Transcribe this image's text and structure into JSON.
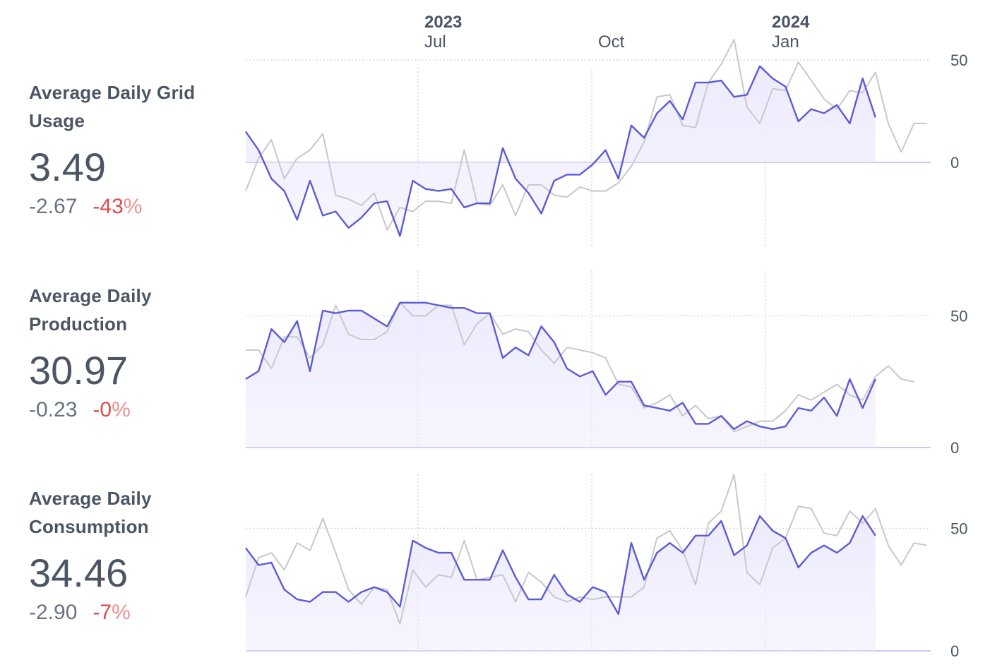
{
  "header": {
    "years": [
      {
        "label": "2023",
        "tick": "2023-07"
      },
      {
        "label": "2024",
        "tick": "2024-01"
      }
    ],
    "months": [
      {
        "label": "Jul",
        "tick": "2023-07"
      },
      {
        "label": "Oct",
        "tick": "2023-10"
      },
      {
        "label": "Jan",
        "tick": "2024-01"
      }
    ]
  },
  "stats": [
    {
      "title_line1": "Average Daily Grid",
      "title_line2": "Usage",
      "value": "3.49",
      "delta": "-2.67",
      "pct_num": "-43",
      "pct_sign": "%"
    },
    {
      "title_line1": "Average Daily",
      "title_line2": "Production",
      "value": "30.97",
      "delta": "-0.23",
      "pct_num": "-0",
      "pct_sign": "%"
    },
    {
      "title_line1": "Average Daily",
      "title_line2": "Consumption",
      "value": "34.46",
      "delta": "-2.90",
      "pct_num": "-7",
      "pct_sign": "%"
    }
  ],
  "colors": {
    "current": "#5b5bd6",
    "previous": "#c8c8cc",
    "fill": "#eceafd",
    "grid": "#cfcfd6",
    "text": "#4b5563"
  },
  "chart_data": [
    {
      "type": "area",
      "name": "grid-usage",
      "x_start": "2023-04-01",
      "x_step_days": 7,
      "x_ticks": [
        "2023-07",
        "2023-10",
        "2024-01"
      ],
      "ylim": [
        -40,
        60
      ],
      "y_ticks": [
        {
          "value": 50,
          "label": "50"
        },
        {
          "value": 0,
          "label": "0"
        }
      ],
      "series": [
        {
          "role": "current",
          "values": [
            15,
            6,
            -8,
            -14,
            -28,
            -9,
            -26,
            -24,
            -32,
            -27,
            -20,
            -19,
            -36,
            -9,
            -13,
            -14,
            -13,
            -22,
            -20,
            -20,
            7,
            -8,
            -15,
            -25,
            -9,
            -6,
            -6,
            -1,
            6,
            -8,
            18,
            12,
            24,
            30,
            21,
            39,
            39,
            40,
            32,
            33,
            47,
            41,
            37,
            20,
            26,
            24,
            28,
            19,
            41,
            22
          ]
        },
        {
          "role": "previous",
          "values": [
            -14,
            2,
            11,
            -8,
            2,
            6,
            14,
            -16,
            -18,
            -21,
            -15,
            -33,
            -22,
            -24,
            -19,
            -19,
            -20,
            6,
            -20,
            -21,
            -11,
            -26,
            -11,
            -11,
            -16,
            -17,
            -12,
            -14,
            -14,
            -10,
            -2,
            10,
            32,
            33,
            18,
            17,
            39,
            48,
            60,
            27,
            19,
            36,
            35,
            49,
            40,
            31,
            26,
            35,
            34,
            44,
            19,
            5,
            19,
            19
          ]
        }
      ]
    },
    {
      "type": "area",
      "name": "production",
      "x_start": "2023-04-01",
      "x_step_days": 7,
      "x_ticks": [
        "2023-07",
        "2023-10",
        "2024-01"
      ],
      "ylim": [
        0,
        67
      ],
      "y_ticks": [
        {
          "value": 50,
          "label": "50"
        },
        {
          "value": 0,
          "label": "0"
        }
      ],
      "series": [
        {
          "role": "current",
          "values": [
            26,
            29,
            45,
            40,
            48,
            29,
            52,
            51,
            52,
            52,
            49,
            46,
            55,
            55,
            55,
            54,
            53,
            53,
            51,
            51,
            34,
            38,
            35,
            46,
            40,
            30,
            27,
            29,
            20,
            25,
            25,
            16,
            15,
            14,
            17,
            9,
            9,
            12,
            7,
            10,
            8,
            7,
            8,
            15,
            14,
            19,
            12,
            26,
            15,
            26
          ]
        },
        {
          "role": "previous",
          "values": [
            37,
            37,
            30,
            42,
            42,
            34,
            39,
            54,
            43,
            41,
            41,
            44,
            55,
            50,
            50,
            54,
            54,
            39,
            47,
            51,
            43,
            45,
            44,
            37,
            32,
            38,
            37,
            36,
            34,
            24,
            23,
            15,
            17,
            20,
            12,
            16,
            11,
            12,
            6,
            8,
            10,
            10,
            14,
            20,
            18,
            21,
            24,
            20,
            18,
            27,
            31,
            26,
            25
          ]
        }
      ]
    },
    {
      "type": "area",
      "name": "consumption",
      "x_start": "2023-04-01",
      "x_step_days": 7,
      "x_ticks": [
        "2023-07",
        "2023-10",
        "2024-01"
      ],
      "ylim": [
        0,
        72
      ],
      "y_ticks": [
        {
          "value": 50,
          "label": "50"
        },
        {
          "value": 0,
          "label": "0"
        }
      ],
      "series": [
        {
          "role": "current",
          "values": [
            42,
            35,
            36,
            25,
            21,
            20,
            24,
            24,
            20,
            24,
            26,
            24,
            18,
            45,
            42,
            40,
            40,
            29,
            29,
            29,
            41,
            30,
            21,
            21,
            31,
            23,
            20,
            26,
            24,
            15,
            44,
            29,
            40,
            44,
            40,
            47,
            47,
            53,
            39,
            43,
            55,
            49,
            46,
            34,
            40,
            43,
            40,
            44,
            55,
            47
          ]
        },
        {
          "role": "previous",
          "values": [
            22,
            38,
            40,
            33,
            44,
            41,
            54,
            40,
            25,
            19,
            26,
            25,
            11,
            33,
            26,
            31,
            30,
            45,
            29,
            30,
            31,
            20,
            32,
            28,
            22,
            20,
            22,
            21,
            22,
            22,
            22,
            26,
            46,
            49,
            41,
            27,
            52,
            57,
            72,
            32,
            27,
            42,
            46,
            59,
            58,
            48,
            47,
            57,
            52,
            58,
            43,
            35,
            44,
            43
          ]
        }
      ]
    }
  ]
}
